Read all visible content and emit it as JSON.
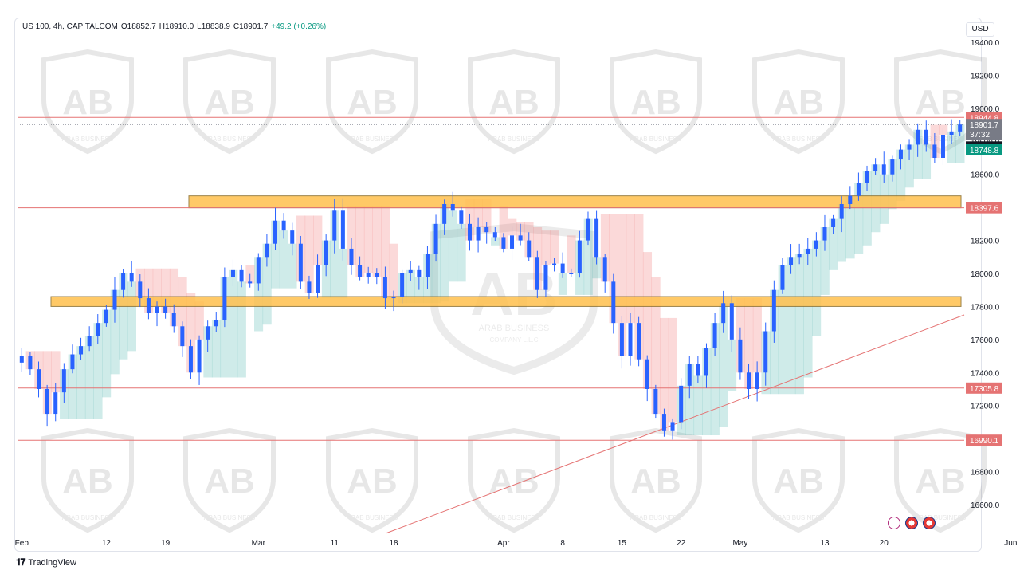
{
  "legend": {
    "symbol": "US 100, 4h, CAPITALCOM",
    "open": "O18852.7",
    "high": "H18910.0",
    "low": "L18838.9",
    "close": "C18901.7",
    "change": "+49.2 (+0.26%)"
  },
  "currency": "USD",
  "footer": {
    "brand": "TradingView"
  },
  "watermark": {
    "text": "ARAB BUSINESS",
    "subtext": "COMPANY L.L.C"
  },
  "colors": {
    "candle": "#2962ff",
    "resistance_line": "#e57373",
    "zone_fill": "#ffc04d",
    "zone_border": "#8a6d2a",
    "cloud_bull": "#26a69a",
    "cloud_bear": "#ef5350",
    "axis_text": "#131722"
  },
  "chart_data": {
    "type": "candlestick",
    "symbol": "US 100",
    "timeframe": "4h",
    "ylim": [
      16500,
      19500
    ],
    "y_ticks": [
      16600,
      16800,
      17000,
      17200,
      17400,
      17600,
      17800,
      18000,
      18200,
      18400,
      18600,
      18800,
      19000,
      19200,
      19400
    ],
    "y_tick_labels": [
      "16600.0",
      "16800.0",
      "17000.0",
      "17200.0",
      "17400.0",
      "17600.0",
      "17800.0",
      "18000.0",
      "18200.0",
      "18400.0",
      "18600.0",
      "18800.0",
      "19000.0",
      "19200.0",
      "19400.0"
    ],
    "x_labels": [
      "Feb",
      "12",
      "19",
      "Mar",
      "11",
      "18",
      "Apr",
      "8",
      "15",
      "22",
      "May",
      "13",
      "20",
      "Jun"
    ],
    "x_label_index": [
      0,
      10,
      17,
      28,
      37,
      44,
      57,
      64,
      71,
      78,
      85,
      95,
      102,
      117
    ],
    "horizontal_levels": [
      {
        "value": 18944.8,
        "label": "18944.8"
      },
      {
        "value": 18397.6,
        "label": "18397.6"
      },
      {
        "value": 17305.8,
        "label": "17305.8"
      },
      {
        "value": 16990.1,
        "label": "16990.1"
      }
    ],
    "price_labels": [
      {
        "label": "18901.7",
        "sublabel": "37:32",
        "value": 18901.7,
        "color": "#787b86"
      },
      {
        "label": "18766.1",
        "value": 18766.1,
        "color": "#131722"
      },
      {
        "label": "18748.8",
        "value": 18748.8,
        "color": "#089981"
      }
    ],
    "zones": [
      {
        "from": 18397.6,
        "to": 18470,
        "x_start": 23,
        "x_end": 123
      },
      {
        "from": 17800,
        "to": 17860,
        "x_start": 0,
        "x_end": 123
      }
    ],
    "trendline": {
      "start": [
        20,
        16540
      ],
      "end": [
        123,
        17740
      ]
    },
    "daily_close": [
      17500,
      17420,
      17300,
      17150,
      17280,
      17420,
      17510,
      17560,
      17620,
      17700,
      17780,
      17900,
      18000,
      17950,
      17850,
      17760,
      17800,
      17760,
      17680,
      17560,
      17400,
      17600,
      17680,
      17720,
      17980,
      18020,
      17950,
      17940,
      18100,
      18180,
      18320,
      18260,
      18180,
      17950,
      17880,
      18050,
      18200,
      18380,
      18150,
      18050,
      17980,
      18000,
      17980,
      17850,
      17860,
      18000,
      18020,
      17980,
      18120,
      18300,
      18420,
      18380,
      18300,
      18200,
      18280,
      18250,
      18220,
      18150,
      18230,
      18200,
      18100,
      17900,
      18050,
      18060,
      18000,
      18000,
      18200,
      18330,
      18100,
      17950,
      17700,
      17500,
      17700,
      17480,
      17300,
      17150,
      17050,
      17100,
      17320,
      17450,
      17380,
      17550,
      17700,
      17820,
      17600,
      17400,
      17300,
      17400,
      17650,
      17900,
      18050,
      18100,
      18120,
      18150,
      18200,
      18280,
      18330,
      18420,
      18470,
      18550,
      18620,
      18660,
      18600,
      18690,
      18750,
      18780,
      18870,
      18780,
      18700,
      18840,
      18860,
      18901.7
    ]
  }
}
